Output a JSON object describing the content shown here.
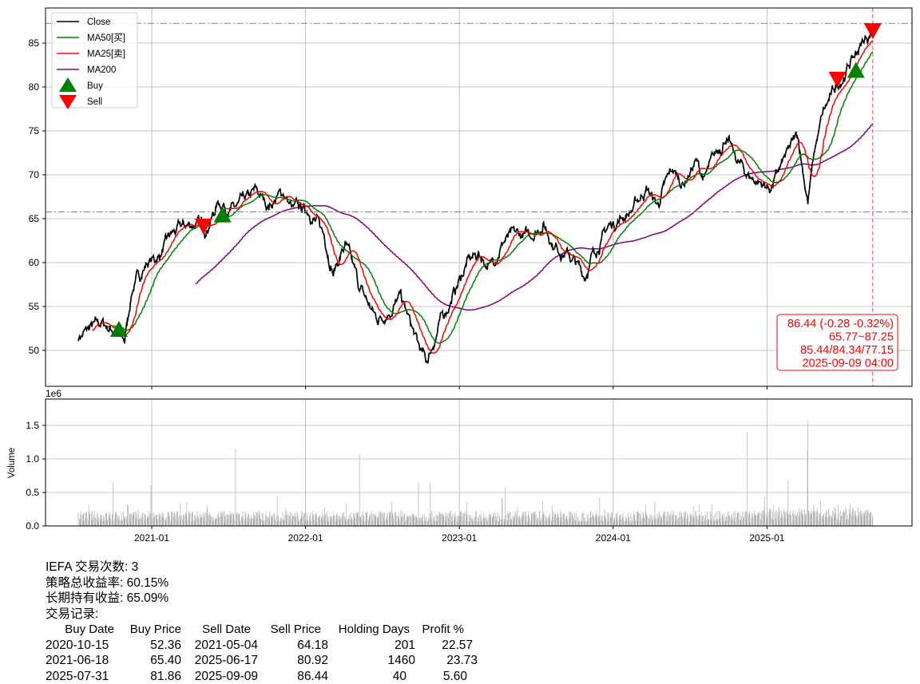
{
  "chart_data": {
    "type": "line",
    "ticker": "IEFA",
    "price_panel": {
      "ylim": [
        45.9,
        89.0
      ],
      "yticks": [
        50,
        55,
        60,
        65,
        70,
        75,
        80,
        85
      ],
      "grid": true,
      "legend": {
        "placement": "top-left",
        "entries": [
          "Close",
          "MA50[买]",
          "MA25[卖]",
          "MA200",
          "Buy",
          "Sell"
        ]
      },
      "colors": {
        "close": "#000000",
        "ma50": "#008000",
        "ma25": "#ff0000",
        "ma200": "#800080",
        "buy": "#008000",
        "sell": "#ff0000"
      },
      "ma_windows": {
        "ma50": 50,
        "ma25": 25,
        "ma200": 200
      },
      "close_anchors": [
        [
          "2020-07-10",
          51.5
        ],
        [
          "2020-08-10",
          52.5
        ],
        [
          "2020-09-05",
          53.0
        ],
        [
          "2020-10-05",
          52.3
        ],
        [
          "2020-10-28",
          50.8
        ],
        [
          "2020-11-15",
          57.0
        ],
        [
          "2020-12-20",
          60.0
        ],
        [
          "2021-01-15",
          60.5
        ],
        [
          "2021-02-15",
          63.0
        ],
        [
          "2021-03-15",
          64.0
        ],
        [
          "2021-04-15",
          64.5
        ],
        [
          "2021-05-10",
          64.0
        ],
        [
          "2021-06-10",
          67.0
        ],
        [
          "2021-07-15",
          66.0
        ],
        [
          "2021-08-15",
          67.0
        ],
        [
          "2021-09-05",
          68.0
        ],
        [
          "2021-10-05",
          66.5
        ],
        [
          "2021-11-10",
          68.0
        ],
        [
          "2021-12-01",
          66.0
        ],
        [
          "2022-01-10",
          66.0
        ],
        [
          "2022-02-15",
          63.0
        ],
        [
          "2022-03-08",
          59.0
        ],
        [
          "2022-04-05",
          62.0
        ],
        [
          "2022-05-10",
          57.0
        ],
        [
          "2022-06-20",
          53.5
        ],
        [
          "2022-07-15",
          54.5
        ],
        [
          "2022-08-15",
          56.0
        ],
        [
          "2022-09-25",
          50.5
        ],
        [
          "2022-10-15",
          48.5
        ],
        [
          "2022-11-15",
          53.0
        ],
        [
          "2022-12-15",
          56.0
        ],
        [
          "2023-01-20",
          60.0
        ],
        [
          "2023-02-15",
          61.0
        ],
        [
          "2023-03-15",
          59.5
        ],
        [
          "2023-04-15",
          62.5
        ],
        [
          "2023-05-15",
          63.0
        ],
        [
          "2023-06-15",
          63.0
        ],
        [
          "2023-07-20",
          64.5
        ],
        [
          "2023-08-15",
          62.0
        ],
        [
          "2023-09-15",
          61.0
        ],
        [
          "2023-10-25",
          58.5
        ],
        [
          "2023-11-15",
          61.0
        ],
        [
          "2023-12-20",
          64.0
        ],
        [
          "2024-01-15",
          65.0
        ],
        [
          "2024-02-15",
          66.0
        ],
        [
          "2024-03-20",
          68.5
        ],
        [
          "2024-04-15",
          66.5
        ],
        [
          "2024-05-20",
          70.5
        ],
        [
          "2024-06-15",
          69.0
        ],
        [
          "2024-07-15",
          71.5
        ],
        [
          "2024-08-05",
          69.5
        ],
        [
          "2024-09-25",
          74.5
        ],
        [
          "2024-10-15",
          72.0
        ],
        [
          "2024-11-15",
          70.0
        ],
        [
          "2024-12-20",
          69.0
        ],
        [
          "2025-01-10",
          68.5
        ],
        [
          "2025-02-15",
          72.0
        ],
        [
          "2025-03-15",
          74.5
        ],
        [
          "2025-04-08",
          67.0
        ],
        [
          "2025-04-25",
          73.0
        ],
        [
          "2025-05-15",
          77.0
        ],
        [
          "2025-06-15",
          80.0
        ],
        [
          "2025-07-15",
          82.5
        ],
        [
          "2025-08-15",
          85.0
        ],
        [
          "2025-09-09",
          86.44
        ]
      ],
      "hlines": [
        {
          "value": 65.77,
          "color": "#cd5c5c"
        },
        {
          "value": 87.25,
          "color": "#5f9e5f"
        }
      ],
      "vline_date": "2025-09-09",
      "buys": [
        [
          "2020-10-15",
          52.36
        ],
        [
          "2021-06-18",
          65.4
        ],
        [
          "2025-07-31",
          81.86
        ]
      ],
      "sells": [
        [
          "2021-05-04",
          64.18
        ],
        [
          "2025-06-17",
          80.92
        ],
        [
          "2025-09-09",
          86.44
        ]
      ],
      "annotation": [
        "86.44 (-0.28 -0.32%)",
        "65.77~87.25",
        "85.44/84.34/77.15",
        "2025-09-09 04:00"
      ]
    },
    "volume_panel": {
      "ylabel": "Volume",
      "scale_label": "1e6",
      "ylim": [
        0,
        1.89
      ],
      "yticks": [
        "0.0",
        "0.5",
        "1.0",
        "1.5"
      ],
      "typical_volume_1e6": 0.15,
      "spikes_1e6": [
        [
          "2020-10-01",
          0.65
        ],
        [
          "2020-12-30",
          0.6
        ],
        [
          "2021-07-19",
          1.15
        ],
        [
          "2022-05-09",
          1.07
        ],
        [
          "2022-09-26",
          0.65
        ],
        [
          "2022-10-24",
          0.65
        ],
        [
          "2023-04-20",
          0.58
        ],
        [
          "2024-11-15",
          1.4
        ],
        [
          "2025-02-20",
          0.68
        ],
        [
          "2025-04-07",
          1.13
        ],
        [
          "2025-04-08",
          1.57
        ]
      ],
      "color": "#b0b0b0"
    },
    "xticks": [
      [
        "2021-01-01",
        "2021-01"
      ],
      [
        "2022-01-01",
        "2022-01"
      ],
      [
        "2023-01-01",
        "2023-01"
      ],
      [
        "2024-01-01",
        "2024-01"
      ],
      [
        "2025-01-01",
        "2025-01"
      ]
    ]
  },
  "stats": {
    "trades": "IEFA 交易次数: 3",
    "strategy_return": "策略总收益率: 60.15%",
    "buy_hold_return": "长期持有收益: 65.09%",
    "records_title": "交易记录:",
    "columns": [
      "Buy Date",
      "Buy Price",
      "Sell Date",
      "Sell Price",
      "Holding Days",
      "Profit %"
    ],
    "rows": [
      [
        "2020-10-15",
        "52.36",
        "2021-05-04",
        "64.18",
        "201",
        "22.57"
      ],
      [
        "2021-06-18",
        "65.40",
        "2025-06-17",
        "80.92",
        "1460",
        "23.73"
      ],
      [
        "2025-07-31",
        "81.86",
        "2025-09-09",
        "86.44",
        "40",
        "5.60"
      ]
    ]
  }
}
